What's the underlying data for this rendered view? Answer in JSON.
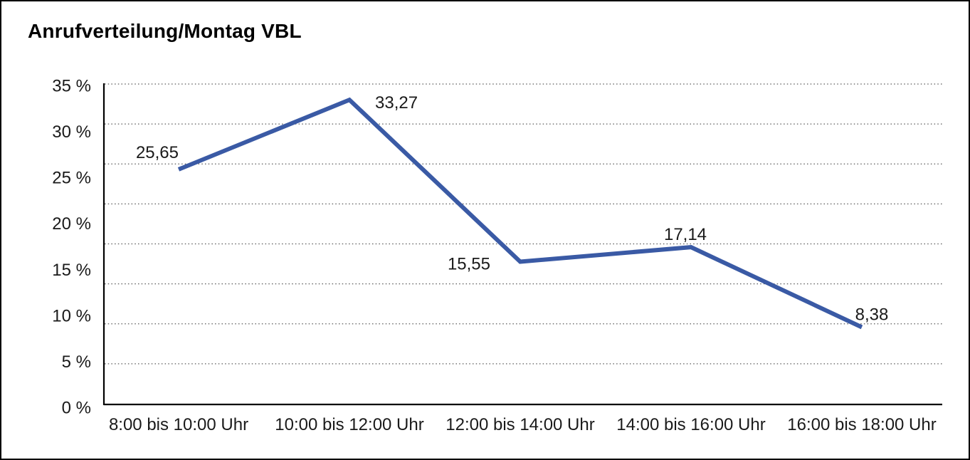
{
  "chart_data": {
    "type": "line",
    "title": "Anrufverteilung/Montag VBL",
    "categories": [
      "8:00 bis 10:00 Uhr",
      "10:00 bis 12:00 Uhr",
      "12:00 bis 14:00 Uhr",
      "14:00 bis 16:00 Uhr",
      "16:00 bis 18:00 Uhr"
    ],
    "values": [
      25.65,
      33.27,
      15.55,
      17.14,
      8.38
    ],
    "value_labels": [
      "25,65",
      "33,27",
      "15,55",
      "17,14",
      "8,38"
    ],
    "y_ticks": [
      "35 %",
      "30 %",
      "25 %",
      "20 %",
      "15 %",
      "10 %",
      "5 %",
      "0 %"
    ],
    "ylim": [
      0,
      35
    ],
    "xlabel": "",
    "ylabel": "",
    "legend": "none",
    "grid": "horizontal dotted, 9 evenly spaced lines",
    "line_color": "#3A5AA5",
    "axis_color": "#000000",
    "gridline_color": "#595959",
    "text_color": "#1A1A1A",
    "background_color": "#FFFFFF"
  }
}
